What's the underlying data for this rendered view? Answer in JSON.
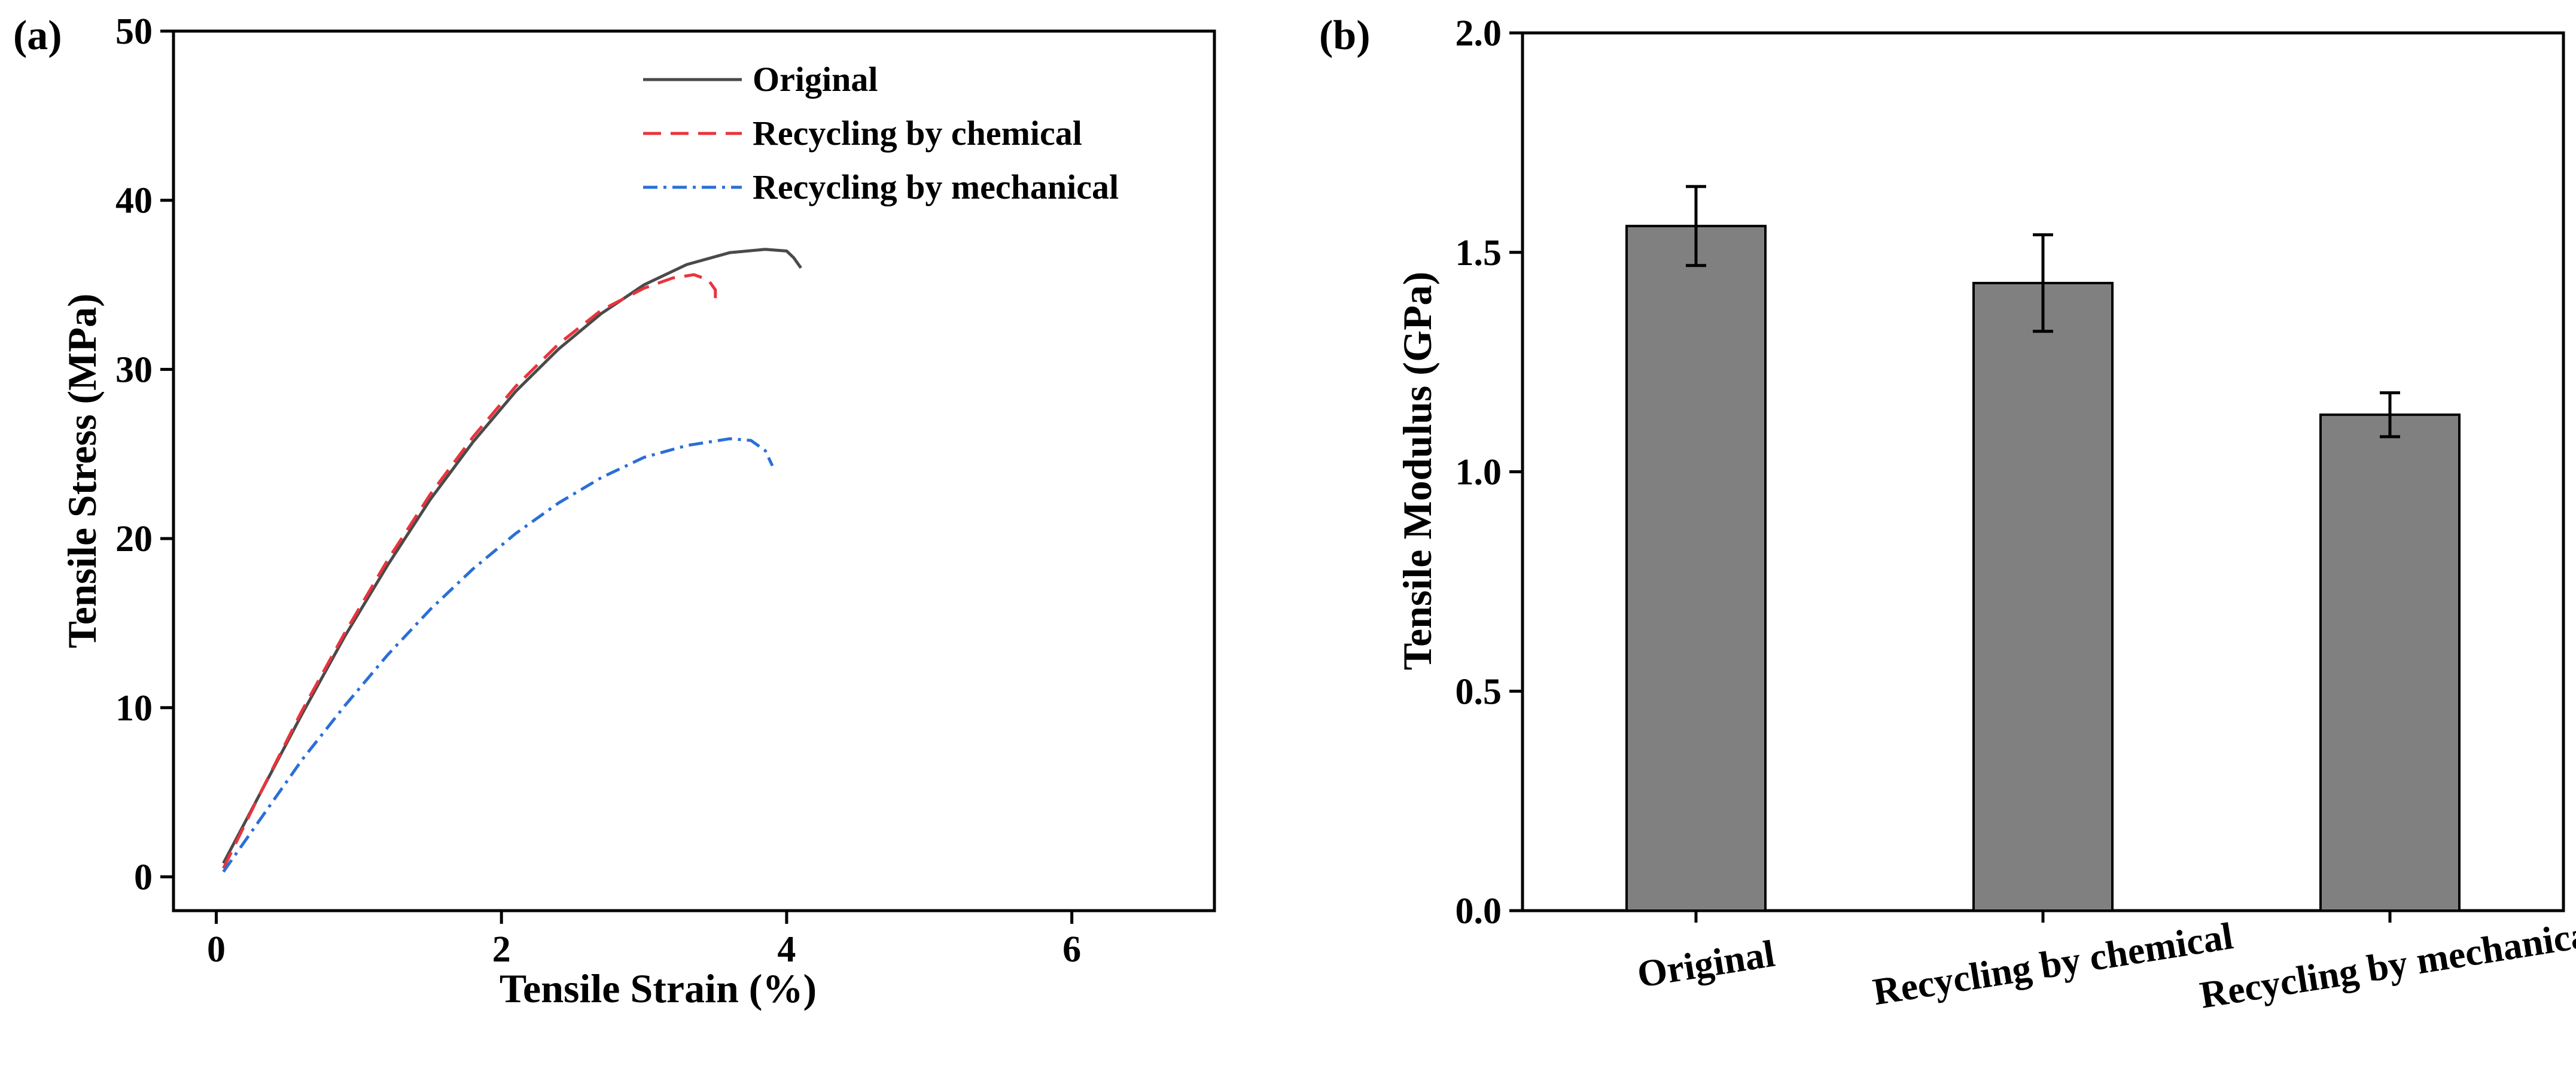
{
  "chart_data": [
    {
      "panel_label": "(a)",
      "type": "line",
      "xlabel": "Tensile Strain (%)",
      "ylabel": "Tensile Stress (MPa)",
      "xlim": [
        -0.3,
        7
      ],
      "ylim": [
        -2,
        50
      ],
      "x_ticks": [
        0,
        2,
        4,
        6
      ],
      "x_tick_labels": [
        "0",
        "2",
        "4",
        "6"
      ],
      "y_ticks": [
        0,
        10,
        20,
        30,
        40,
        50
      ],
      "y_tick_labels": [
        "0",
        "10",
        "20",
        "30",
        "40",
        "50"
      ],
      "legend_position": "top-right",
      "series": [
        {
          "name": "Original",
          "color": "#4a4a4a",
          "style": "solid",
          "x": [
            0.05,
            0.3,
            0.6,
            0.9,
            1.2,
            1.5,
            1.8,
            2.1,
            2.4,
            2.7,
            3.0,
            3.3,
            3.6,
            3.85,
            4.0,
            4.05,
            4.1
          ],
          "y": [
            0.8,
            4.8,
            9.6,
            14.2,
            18.4,
            22.3,
            25.7,
            28.7,
            31.2,
            33.3,
            35.0,
            36.2,
            36.9,
            37.1,
            37.0,
            36.6,
            36.0
          ]
        },
        {
          "name": "Recycling by chemical",
          "color": "#e8343c",
          "style": "dash",
          "x": [
            0.05,
            0.3,
            0.6,
            0.9,
            1.2,
            1.5,
            1.8,
            2.1,
            2.4,
            2.7,
            3.0,
            3.2,
            3.35,
            3.45,
            3.5,
            3.5
          ],
          "y": [
            0.5,
            4.8,
            9.8,
            14.4,
            18.7,
            22.6,
            26.0,
            29.0,
            31.5,
            33.5,
            34.8,
            35.4,
            35.6,
            35.3,
            34.7,
            34.0
          ]
        },
        {
          "name": "Recycling by mechanical",
          "color": "#2a6fd6",
          "style": "dashdot",
          "x": [
            0.05,
            0.3,
            0.6,
            0.9,
            1.2,
            1.5,
            1.8,
            2.1,
            2.4,
            2.7,
            3.0,
            3.3,
            3.6,
            3.75,
            3.85,
            3.9
          ],
          "y": [
            0.3,
            3.3,
            6.9,
            10.1,
            13.1,
            15.8,
            18.2,
            20.3,
            22.1,
            23.6,
            24.8,
            25.5,
            25.9,
            25.8,
            25.2,
            24.3
          ]
        }
      ]
    },
    {
      "panel_label": "(b)",
      "type": "bar",
      "xlabel": "",
      "ylabel": "Tensile Modulus (GPa)",
      "ylim": [
        0,
        2.0
      ],
      "y_ticks": [
        0,
        0.5,
        1.0,
        1.5,
        2.0
      ],
      "y_tick_labels": [
        "0.0",
        "0.5",
        "1.0",
        "1.5",
        "2.0"
      ],
      "categories": [
        "Original",
        "Recycling by chemical",
        "Recycling by mechanical"
      ],
      "values": [
        1.56,
        1.43,
        1.13
      ],
      "errors": [
        0.09,
        0.11,
        0.05
      ],
      "bar_color": "#808080"
    }
  ]
}
